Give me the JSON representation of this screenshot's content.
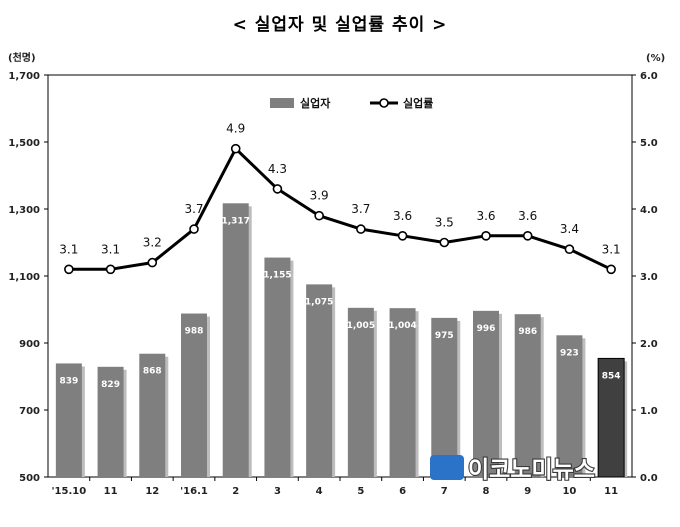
{
  "title": "< 실업자 및 실업률 추이 >",
  "watermark": "이코노미뉴스",
  "chart_data": {
    "type": "bar",
    "title": "< 실업자 및 실업률 추이 >",
    "categories": [
      "'15.10",
      "11",
      "12",
      "'16.1",
      "2",
      "3",
      "4",
      "5",
      "6",
      "7",
      "8",
      "9",
      "10",
      "11"
    ],
    "left_axis": {
      "unit": "(천명)",
      "ylim": [
        500,
        1700
      ],
      "ticks": [
        500,
        700,
        900,
        1100,
        1300,
        1500,
        1700
      ]
    },
    "right_axis": {
      "unit": "(%)",
      "ylim": [
        0.0,
        6.0
      ],
      "ticks": [
        "0.0",
        "1.0",
        "2.0",
        "3.0",
        "4.0",
        "5.0",
        "6.0"
      ]
    },
    "series": [
      {
        "name": "실업자",
        "type": "bar",
        "axis": "left",
        "values": [
          839,
          829,
          868,
          988,
          1317,
          1155,
          1075,
          1005,
          1004,
          975,
          996,
          986,
          923,
          854
        ],
        "labels": [
          "839",
          "829",
          "868",
          "988",
          "1,317",
          "1,155",
          "1,075",
          "1,005",
          "1,004",
          "975",
          "996",
          "986",
          "923",
          "854"
        ],
        "color": "#7f7f7f",
        "highlight_last_color": "#404040"
      },
      {
        "name": "실업률",
        "type": "line",
        "axis": "right",
        "values": [
          3.1,
          3.1,
          3.2,
          3.7,
          4.9,
          4.3,
          3.9,
          3.7,
          3.6,
          3.5,
          3.6,
          3.6,
          3.4,
          3.1
        ],
        "labels": [
          "3.1",
          "3.1",
          "3.2",
          "3.7",
          "4.9",
          "4.3",
          "3.9",
          "3.7",
          "3.6",
          "3.5",
          "3.6",
          "3.6",
          "3.4",
          "3.1"
        ],
        "color": "#000000"
      }
    ],
    "legend_position": "top-center",
    "grid": false
  }
}
